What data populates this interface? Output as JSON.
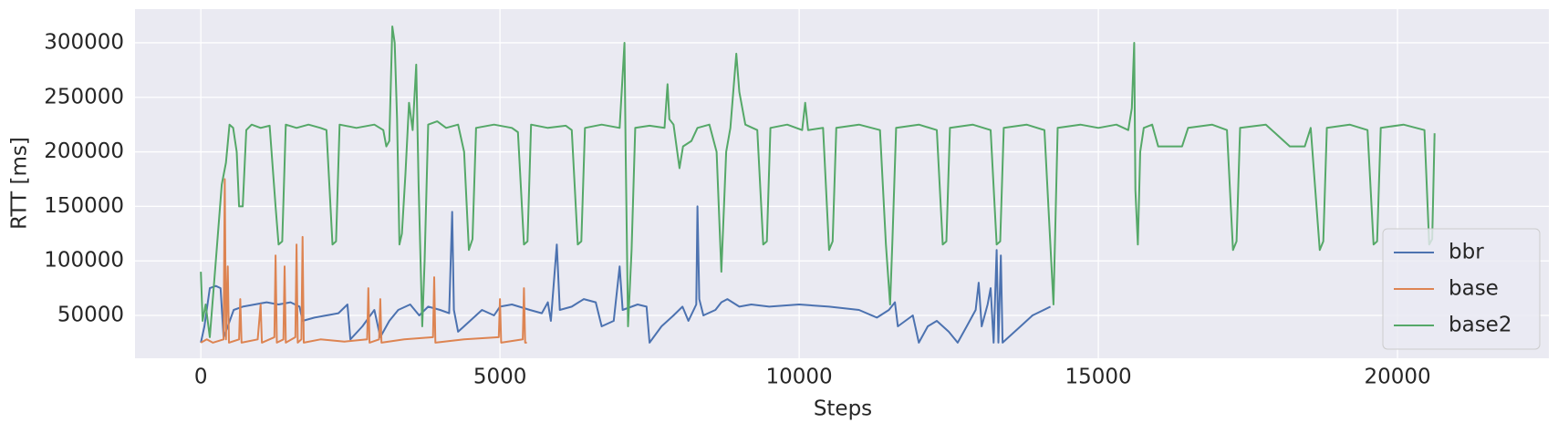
{
  "chart_data": {
    "type": "line",
    "xlabel": "Steps",
    "ylabel": "RTT [ms]",
    "xlim": [
      -1100,
      22530
    ],
    "ylim": [
      10700,
      330900
    ],
    "xticks": [
      0,
      5000,
      10000,
      15000,
      20000
    ],
    "yticks": [
      50000,
      100000,
      150000,
      200000,
      250000,
      300000
    ],
    "grid": true,
    "legend": "lower right",
    "series": [
      {
        "name": "bbr",
        "color": "#4c72b0",
        "x": [
          0,
          60,
          150,
          250,
          330,
          380,
          450,
          550,
          700,
          900,
          1100,
          1300,
          1500,
          1650,
          1700,
          1900,
          2100,
          2300,
          2450,
          2500,
          2700,
          2900,
          3000,
          3150,
          3300,
          3500,
          3650,
          3800,
          4000,
          4150,
          4200,
          4230,
          4300,
          4500,
          4700,
          4900,
          5000,
          5200,
          5500,
          5700,
          5800,
          5850,
          5950,
          6000,
          6200,
          6400,
          6600,
          6700,
          6900,
          7000,
          7050,
          7300,
          7450,
          7500,
          7700,
          7900,
          8050,
          8150,
          8280,
          8300,
          8330,
          8400,
          8600,
          8700,
          8800,
          9000,
          9200,
          9500,
          10000,
          10500,
          11000,
          11300,
          11500,
          11600,
          11650,
          11900,
          12000,
          12150,
          12300,
          12500,
          12650,
          12800,
          12950,
          13000,
          13050,
          13150,
          13200,
          13250,
          13300,
          13330,
          13370,
          13400,
          13500,
          13700,
          13900,
          14200
        ],
        "values": [
          25000,
          40000,
          75000,
          77000,
          75000,
          30000,
          40000,
          55000,
          58000,
          60000,
          62000,
          60000,
          62000,
          58000,
          45000,
          48000,
          50000,
          52000,
          60000,
          28000,
          40000,
          55000,
          30000,
          45000,
          55000,
          60000,
          50000,
          58000,
          55000,
          52000,
          145000,
          55000,
          35000,
          45000,
          55000,
          50000,
          58000,
          60000,
          55000,
          52000,
          62000,
          45000,
          115000,
          55000,
          58000,
          65000,
          62000,
          40000,
          45000,
          95000,
          55000,
          60000,
          58000,
          25000,
          40000,
          50000,
          58000,
          45000,
          60000,
          150000,
          65000,
          50000,
          55000,
          62000,
          65000,
          58000,
          60000,
          58000,
          60000,
          58000,
          55000,
          48000,
          55000,
          62000,
          40000,
          50000,
          25000,
          40000,
          45000,
          35000,
          25000,
          40000,
          55000,
          80000,
          40000,
          60000,
          75000,
          25000,
          110000,
          25000,
          105000,
          25000,
          30000,
          40000,
          50000,
          58000
        ]
      },
      {
        "name": "base",
        "color": "#dd8452",
        "x": [
          0,
          100,
          200,
          380,
          400,
          420,
          450,
          470,
          640,
          660,
          680,
          950,
          1000,
          1020,
          1230,
          1250,
          1270,
          1380,
          1400,
          1420,
          1580,
          1600,
          1620,
          1680,
          1700,
          1720,
          2000,
          2400,
          2780,
          2800,
          2820,
          2980,
          3000,
          3020,
          3400,
          3880,
          3900,
          3920,
          4400,
          4980,
          5000,
          5020,
          5380,
          5400,
          5420,
          5450
        ],
        "values": [
          25000,
          28000,
          25000,
          28000,
          175000,
          28000,
          95000,
          25000,
          28000,
          65000,
          25000,
          28000,
          60000,
          25000,
          30000,
          105000,
          25000,
          28000,
          95000,
          25000,
          30000,
          115000,
          25000,
          28000,
          122000,
          25000,
          28000,
          26000,
          28000,
          75000,
          25000,
          28000,
          65000,
          25000,
          28000,
          30000,
          85000,
          25000,
          28000,
          30000,
          65000,
          25000,
          28000,
          75000,
          25000,
          25000
        ]
      },
      {
        "name": "base2",
        "color": "#55a868",
        "x": [
          0,
          30,
          80,
          150,
          250,
          350,
          420,
          480,
          540,
          600,
          640,
          700,
          760,
          850,
          1000,
          1150,
          1250,
          1300,
          1360,
          1420,
          1600,
          1800,
          2000,
          2100,
          2200,
          2260,
          2320,
          2600,
          2900,
          3050,
          3100,
          3150,
          3200,
          3240,
          3280,
          3320,
          3360,
          3420,
          3480,
          3540,
          3600,
          3640,
          3700,
          3740,
          3800,
          3950,
          4100,
          4300,
          4400,
          4480,
          4540,
          4600,
          4900,
          5200,
          5300,
          5400,
          5460,
          5520,
          5800,
          6100,
          6200,
          6300,
          6360,
          6420,
          6700,
          7000,
          7080,
          7100,
          7140,
          7200,
          7260,
          7500,
          7750,
          7800,
          7830,
          7900,
          8000,
          8060,
          8200,
          8300,
          8500,
          8620,
          8700,
          8780,
          8850,
          8950,
          9000,
          9100,
          9300,
          9400,
          9460,
          9520,
          9800,
          10050,
          10100,
          10150,
          10400,
          10500,
          10560,
          10620,
          11000,
          11350,
          11450,
          11520,
          11560,
          11620,
          12000,
          12300,
          12400,
          12460,
          12520,
          12900,
          13200,
          13300,
          13360,
          13420,
          13800,
          14100,
          14250,
          14320,
          14700,
          15000,
          15300,
          15500,
          15560,
          15600,
          15620,
          15660,
          15700,
          15760,
          15900,
          16000,
          16400,
          16500,
          16900,
          17150,
          17250,
          17310,
          17370,
          17800,
          18200,
          18450,
          18550,
          18700,
          18760,
          18820,
          19200,
          19500,
          19600,
          19660,
          19720,
          20100,
          20450,
          20530,
          20580,
          20620
        ],
        "values": [
          90000,
          45000,
          60000,
          30000,
          100000,
          170000,
          190000,
          225000,
          222000,
          200000,
          150000,
          150000,
          220000,
          225000,
          222000,
          224000,
          150000,
          115000,
          118000,
          225000,
          222000,
          225000,
          222000,
          220000,
          115000,
          118000,
          225000,
          222000,
          225000,
          220000,
          205000,
          210000,
          315000,
          300000,
          230000,
          115000,
          125000,
          180000,
          245000,
          220000,
          280000,
          170000,
          40000,
          100000,
          225000,
          228000,
          222000,
          225000,
          200000,
          110000,
          120000,
          222000,
          225000,
          222000,
          218000,
          115000,
          118000,
          225000,
          222000,
          224000,
          220000,
          115000,
          118000,
          222000,
          225000,
          222000,
          300000,
          200000,
          40000,
          110000,
          222000,
          224000,
          222000,
          262000,
          230000,
          225000,
          185000,
          205000,
          210000,
          222000,
          225000,
          200000,
          90000,
          200000,
          222000,
          290000,
          255000,
          225000,
          220000,
          115000,
          118000,
          222000,
          225000,
          220000,
          245000,
          220000,
          222000,
          110000,
          118000,
          222000,
          225000,
          220000,
          115000,
          60000,
          120000,
          222000,
          225000,
          220000,
          115000,
          118000,
          222000,
          225000,
          220000,
          115000,
          118000,
          222000,
          225000,
          220000,
          60000,
          222000,
          225000,
          222000,
          225000,
          220000,
          240000,
          300000,
          165000,
          115000,
          200000,
          222000,
          225000,
          205000,
          205000,
          222000,
          225000,
          220000,
          110000,
          118000,
          222000,
          225000,
          205000,
          205000,
          222000,
          110000,
          118000,
          222000,
          225000,
          220000,
          115000,
          118000,
          222000,
          225000,
          220000,
          115000,
          120000,
          217000
        ]
      }
    ]
  }
}
